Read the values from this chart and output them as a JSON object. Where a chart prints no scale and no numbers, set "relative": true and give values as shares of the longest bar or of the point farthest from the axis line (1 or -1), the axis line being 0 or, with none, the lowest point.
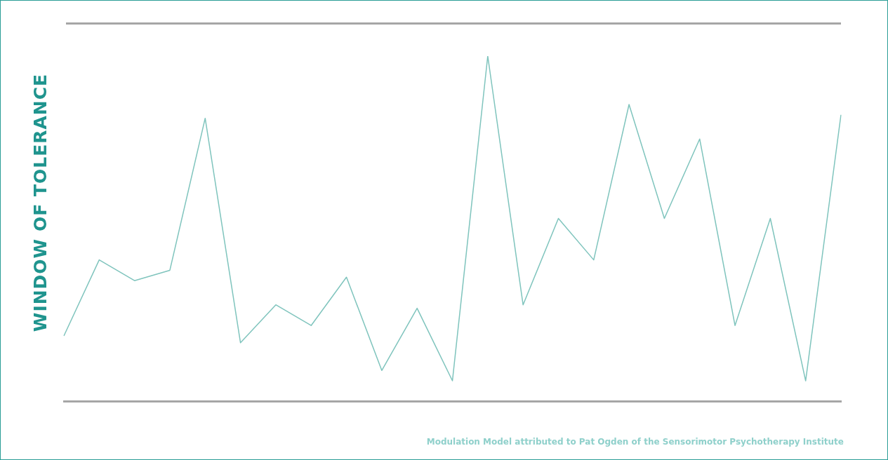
{
  "chart_data": {
    "type": "line",
    "ylabel": "WINDOW OF TOLERANCE",
    "relative": true,
    "categories": [
      null,
      null,
      null,
      null,
      null,
      null,
      null,
      null,
      null,
      null,
      null,
      null,
      null,
      null,
      null,
      null,
      null,
      null,
      null,
      null,
      null,
      null,
      null
    ],
    "series": [
      {
        "color": "#7fc4bd",
        "values": [
          0.19,
          0.41,
          0.35,
          0.38,
          0.82,
          0.17,
          0.28,
          0.22,
          0.36,
          0.09,
          0.27,
          0.06,
          1,
          0.28,
          0.53,
          0.41,
          0.86,
          0.53,
          0.76,
          0.22,
          0.53,
          0.06,
          0.83
        ]
      }
    ],
    "annotations": [
      "Modulation Model attributed to Pat Ogden of the Sensorimotor Psychotherapy Institute"
    ]
  }
}
